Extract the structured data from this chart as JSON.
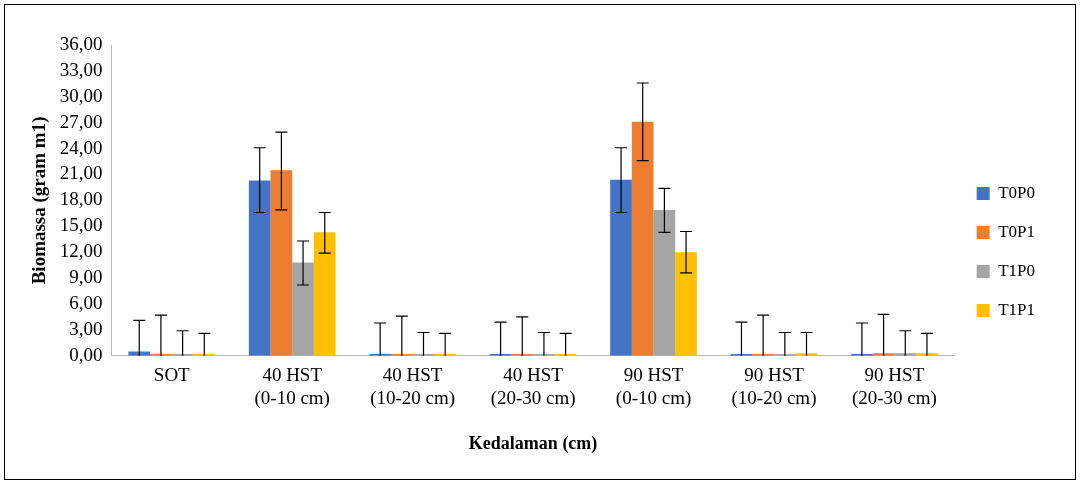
{
  "chart_data": {
    "type": "bar",
    "xlabel": "Kedalaman (cm)",
    "ylabel": "Biomassa (gram m1)",
    "categories": [
      "SOT",
      "40 HST\n(0-10 cm)",
      "40 HST\n(10-20 cm)",
      "40 HST\n(20-30 cm)",
      "90 HST\n(0-10 cm)",
      "90 HST\n(10-20 cm)",
      "90 HST\n(20-30 cm)"
    ],
    "series": [
      {
        "name": "T0P0",
        "color": "#4472c4",
        "values": [
          0.5,
          20.3,
          0.2,
          0.2,
          20.4,
          0.2,
          0.2
        ],
        "errors": [
          [
            0,
            4.1
          ],
          [
            16.6,
            24.1
          ],
          [
            0,
            3.8
          ],
          [
            0,
            3.9
          ],
          [
            16.6,
            24.1
          ],
          [
            0,
            3.9
          ],
          [
            0,
            3.8
          ]
        ]
      },
      {
        "name": "T0P1",
        "color": "#ed7d31",
        "values": [
          0.2,
          21.5,
          0.2,
          0.2,
          27.1,
          0.2,
          0.3
        ],
        "errors": [
          [
            0,
            4.7
          ],
          [
            16.9,
            25.9
          ],
          [
            0,
            4.6
          ],
          [
            0,
            4.5
          ],
          [
            22.6,
            31.6
          ],
          [
            0,
            4.7
          ],
          [
            0,
            4.8
          ]
        ]
      },
      {
        "name": "T1P0",
        "color": "#a5a5a5",
        "values": [
          0.2,
          10.8,
          0.2,
          0.2,
          16.9,
          0.2,
          0.3
        ],
        "errors": [
          [
            0,
            2.9
          ],
          [
            8.2,
            13.3
          ],
          [
            0,
            2.7
          ],
          [
            0,
            2.7
          ],
          [
            14.3,
            19.4
          ],
          [
            0,
            2.7
          ],
          [
            0,
            2.9
          ]
        ]
      },
      {
        "name": "T1P1",
        "color": "#ffc000",
        "values": [
          0.2,
          14.3,
          0.2,
          0.2,
          12.0,
          0.3,
          0.3
        ],
        "errors": [
          [
            0,
            2.6
          ],
          [
            11.9,
            16.6
          ],
          [
            0,
            2.6
          ],
          [
            0,
            2.6
          ],
          [
            9.6,
            14.4
          ],
          [
            0,
            2.7
          ],
          [
            0,
            2.6
          ]
        ]
      }
    ],
    "ylim": [
      0,
      36
    ],
    "yticks": [
      {
        "value": 0,
        "label": "0,00"
      },
      {
        "value": 3,
        "label": "3,00"
      },
      {
        "value": 6,
        "label": "6,00"
      },
      {
        "value": 9,
        "label": "9,00"
      },
      {
        "value": 12,
        "label": "12,00"
      },
      {
        "value": 15,
        "label": "15,00"
      },
      {
        "value": 18,
        "label": "18,00"
      },
      {
        "value": 21,
        "label": "21,00"
      },
      {
        "value": 24,
        "label": "24,00"
      },
      {
        "value": 27,
        "label": "27,00"
      },
      {
        "value": 30,
        "label": "30,00"
      },
      {
        "value": 33,
        "label": "33,00"
      },
      {
        "value": 36,
        "label": "36,00"
      }
    ],
    "grid": false,
    "legend": "right"
  }
}
